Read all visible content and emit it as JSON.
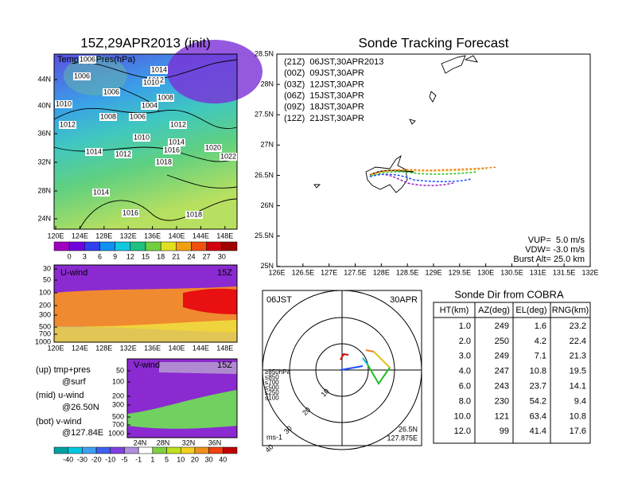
{
  "surface": {
    "title": "15Z,29APR2013 (init)",
    "label": "Temp(C)+Pres(hPa)",
    "yticks": [
      "44N",
      "40N",
      "36N",
      "32N",
      "28N",
      "24N"
    ],
    "xticks": [
      "120E",
      "124E",
      "128E",
      "132E",
      "136E",
      "140E",
      "144E",
      "148E"
    ],
    "contour_labels": [
      "1006",
      "1014",
      "1012",
      "1006",
      "1010",
      "1006",
      "1008",
      "1010",
      "1004",
      "1008",
      "1006",
      "1012",
      "1012",
      "1010",
      "1014",
      "1016",
      "1020",
      "1022",
      "1014",
      "1012",
      "1018",
      "1014",
      "1016",
      "1018"
    ],
    "colorbar": [
      "0",
      "3",
      "6",
      "9",
      "12",
      "15",
      "18",
      "21",
      "24",
      "27",
      "30"
    ]
  },
  "u_wind": {
    "label": "U-wind",
    "time": "15Z",
    "yticks": [
      "30",
      "50",
      "100",
      "200",
      "300",
      "500",
      "700",
      "1000"
    ],
    "xticks": [
      "120E",
      "124E",
      "128E",
      "132E",
      "136E",
      "140E",
      "144E",
      "148E"
    ]
  },
  "v_wind": {
    "label": "V-wind",
    "time": "15Z",
    "yticks": [
      "50",
      "100",
      "200",
      "300",
      "500",
      "700",
      "1000"
    ],
    "xticks": [
      "24N",
      "28N",
      "32N",
      "36N"
    ]
  },
  "notes": [
    "(up) tmp+pres",
    "@surf",
    "(mid) u-wind",
    "@26.50N",
    "(bot) v-wind",
    "@127.84E"
  ],
  "wind_colorbar": [
    "-40",
    "-30",
    "-20",
    "-10",
    "-5",
    "-1",
    "1",
    "5",
    "10",
    "20",
    "30",
    "40"
  ],
  "track": {
    "title": "Sonde Tracking Forecast",
    "legend": [
      {
        "text": "(21Z)  06JST,30APR2013",
        "color": "#000000"
      },
      {
        "text": "(00Z)  09JST,30APR",
        "color": "#a020c0"
      },
      {
        "text": "(03Z)  12JST,30APR",
        "color": "#2050ff"
      },
      {
        "text": "(06Z)  15JST,30APR",
        "color": "#20c020"
      },
      {
        "text": "(09Z)  18JST,30APR",
        "color": "#e0c020"
      },
      {
        "text": "(12Z)  21JST,30APR",
        "color": "#f08020"
      }
    ],
    "yticks": [
      "28.5N",
      "28N",
      "27.5N",
      "27N",
      "26.5N",
      "26N",
      "25.5N",
      "25N"
    ],
    "xticks": [
      "126E",
      "126.5E",
      "127E",
      "127.5E",
      "128E",
      "128.5E",
      "129E",
      "129.5E",
      "130E",
      "130.5E",
      "131E",
      "131.5E",
      "132E"
    ],
    "params": [
      "VUP=  5.0 m/s",
      "VDW= -3.0 m/s",
      "Burst Alt= 25.0 km"
    ]
  },
  "hodograph": {
    "time": "06JST",
    "date": "30APR",
    "rings": [
      "10",
      "20",
      "30",
      "40"
    ],
    "levels": [
      {
        "text": "≥850hPa",
        "color": "#e00000"
      },
      {
        "text": "≤850",
        "color": "#f08020"
      },
      {
        "text": "≤700",
        "color": "#e0c020"
      },
      {
        "text": "≤500",
        "color": "#20c020"
      },
      {
        "text": "≤250",
        "color": "#00c0e0"
      },
      {
        "text": "≤100",
        "color": "#2050ff"
      }
    ],
    "unit": "ms-1",
    "lat": "26.5N",
    "lon": "127.875E"
  },
  "table": {
    "title": "Sonde Dir from COBRA",
    "header": [
      "HT(km)",
      "AZ(deg)",
      "EL(deg)",
      "RNG(km)"
    ],
    "rows": [
      [
        "1.0",
        "249",
        "1.6",
        "23.2"
      ],
      [
        "2.0",
        "250",
        "4.2",
        "22.4"
      ],
      [
        "3.0",
        "249",
        "7.1",
        "21.3"
      ],
      [
        "4.0",
        "247",
        "10.8",
        "19.5"
      ],
      [
        "6.0",
        "243",
        "23.7",
        "14.1"
      ],
      [
        "8.0",
        "230",
        "54.2",
        "9.4"
      ],
      [
        "10.0",
        "121",
        "63.4",
        "10.8"
      ],
      [
        "12.0",
        "99",
        "41.4",
        "17.6"
      ]
    ]
  }
}
